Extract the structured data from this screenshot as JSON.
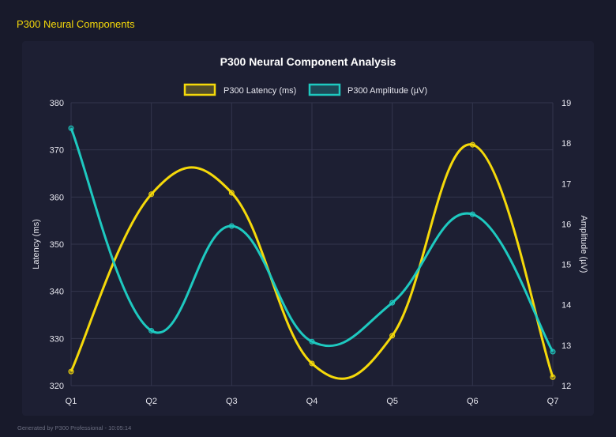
{
  "header": {
    "title": "P300 Neural Components"
  },
  "footer": {
    "text": "Generated by P300 Professional - 10:05:14"
  },
  "chart_data": {
    "type": "line",
    "title": "P300 Neural Component Analysis",
    "categories": [
      "Q1",
      "Q2",
      "Q3",
      "Q4",
      "Q5",
      "Q6",
      "Q7"
    ],
    "series": [
      {
        "name": "P300 Latency (ms)",
        "axis": "left",
        "color": "#f5d90a",
        "values": [
          323,
          360.6,
          360.9,
          324.7,
          330.6,
          371.1,
          321.8
        ]
      },
      {
        "name": "P300 Amplitude (µV)",
        "axis": "right",
        "color": "#1ec9c0",
        "values": [
          18.37,
          13.36,
          15.95,
          13.09,
          14.05,
          16.24,
          12.84
        ]
      }
    ],
    "ylabel": "Latency (ms)",
    "y2label": "Amplitude (µV)",
    "ylim": [
      320,
      380
    ],
    "y2lim": [
      12,
      19
    ],
    "yticks": [
      "320",
      "330",
      "340",
      "350",
      "360",
      "370",
      "380"
    ],
    "y2ticks": [
      "12",
      "13",
      "14",
      "15",
      "16",
      "17",
      "18",
      "19"
    ],
    "grid": true,
    "legend": "top"
  }
}
